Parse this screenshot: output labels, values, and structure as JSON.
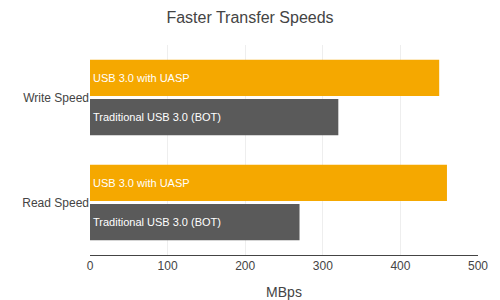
{
  "chart_data": {
    "type": "bar",
    "orientation": "horizontal",
    "title": "Faster Transfer Speeds",
    "categories": [
      "Write Speed",
      "Read Speed"
    ],
    "series": [
      {
        "name": "USB 3.0 with UASP",
        "color": "#F5A800",
        "values": [
          450,
          460
        ]
      },
      {
        "name": "Traditional USB 3.0 (BOT)",
        "color": "#5a5a5a",
        "values": [
          320,
          270
        ]
      }
    ],
    "x_label": "MBps",
    "xlim": [
      0,
      500
    ],
    "xticks": [
      0,
      100,
      200,
      300,
      400,
      500
    ],
    "grid": true
  }
}
